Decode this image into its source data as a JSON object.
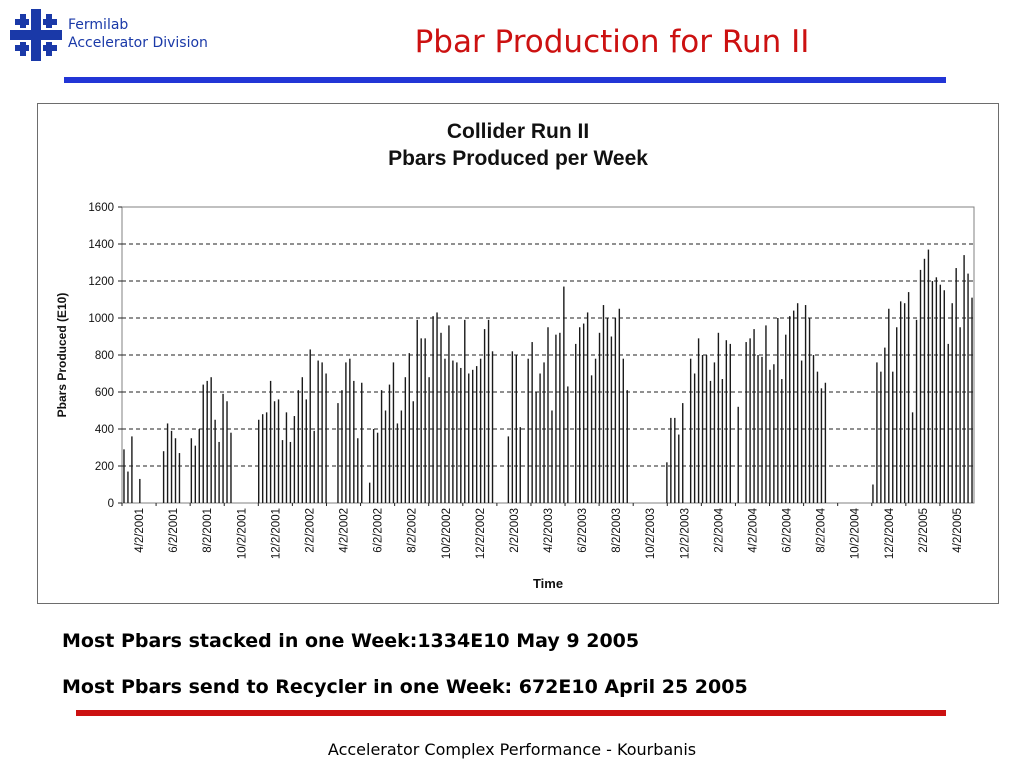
{
  "header": {
    "org_line1": "Fermilab",
    "org_line2": "Accelerator Division",
    "logo_icon": "fermilab-logo-icon",
    "brand_color": "#1a39a8"
  },
  "slide": {
    "title": "Pbar Production for Run II",
    "title_color": "#cc1111",
    "top_rule_color": "#2235d6",
    "bottom_rule_color": "#cc1111"
  },
  "chart_data": {
    "type": "bar",
    "title_line1": "Collider Run II",
    "title_line2": "Pbars Produced per Week",
    "xlabel": "Time",
    "ylabel": "Pbars Produced (E10)",
    "ylim": [
      0,
      1600
    ],
    "yticks": [
      0,
      200,
      400,
      600,
      800,
      1000,
      1200,
      1400,
      1600
    ],
    "grid": "horizontal dashed",
    "legend": "none",
    "bar_color": "#1a1a1a",
    "x_tick_labels": [
      "4/2/2001",
      "6/2/2001",
      "8/2/2001",
      "10/2/2001",
      "12/2/2001",
      "2/2/2002",
      "4/2/2002",
      "6/2/2002",
      "8/2/2002",
      "10/2/2002",
      "12/2/2002",
      "2/2/2003",
      "4/2/2003",
      "6/2/2003",
      "8/2/2003",
      "10/2/2003",
      "12/2/2003",
      "2/2/2004",
      "4/2/2004",
      "6/2/2004",
      "8/2/2004",
      "10/2/2004",
      "12/2/2004",
      "2/2/2005",
      "4/2/2005"
    ],
    "values": [
      290,
      170,
      360,
      0,
      130,
      0,
      0,
      0,
      0,
      0,
      280,
      430,
      390,
      350,
      270,
      0,
      0,
      350,
      310,
      400,
      640,
      660,
      680,
      450,
      330,
      590,
      550,
      380,
      0,
      0,
      0,
      0,
      0,
      0,
      450,
      480,
      490,
      660,
      550,
      560,
      340,
      490,
      330,
      470,
      610,
      680,
      560,
      830,
      390,
      770,
      760,
      700,
      0,
      0,
      540,
      610,
      760,
      780,
      660,
      350,
      650,
      0,
      110,
      400,
      380,
      610,
      500,
      640,
      760,
      430,
      500,
      680,
      810,
      550,
      990,
      890,
      890,
      680,
      1010,
      1030,
      920,
      780,
      960,
      770,
      760,
      730,
      990,
      700,
      720,
      740,
      780,
      940,
      990,
      820,
      0,
      0,
      0,
      360,
      820,
      800,
      410,
      0,
      780,
      870,
      600,
      700,
      760,
      950,
      500,
      910,
      920,
      1170,
      630,
      0,
      860,
      950,
      970,
      1030,
      690,
      780,
      920,
      1070,
      1000,
      900,
      1000,
      1050,
      780,
      610,
      0,
      0,
      0,
      0,
      0,
      0,
      0,
      0,
      0,
      220,
      460,
      460,
      370,
      540,
      0,
      780,
      700,
      890,
      800,
      800,
      660,
      760,
      920,
      670,
      880,
      860,
      0,
      520,
      0,
      870,
      890,
      940,
      800,
      790,
      960,
      720,
      750,
      1000,
      670,
      910,
      1010,
      1040,
      1080,
      770,
      1070,
      1000,
      800,
      710,
      620,
      650,
      0,
      0,
      0,
      0,
      0,
      0,
      0,
      0,
      0,
      0,
      0,
      100,
      760,
      710,
      840,
      1050,
      710,
      950,
      1090,
      1080,
      1140,
      490,
      990,
      1260,
      1320,
      1370,
      1200,
      1220,
      1180,
      1150,
      860,
      1080,
      1270,
      950,
      1340,
      1240,
      1110
    ]
  },
  "notes": {
    "line1": "Most Pbars stacked in one Week:1334E10 May 9 2005",
    "line2": "Most Pbars send to Recycler in one Week: 672E10 April 25 2005"
  },
  "footer": {
    "text": "Accelerator Complex Performance - Kourbanis"
  }
}
